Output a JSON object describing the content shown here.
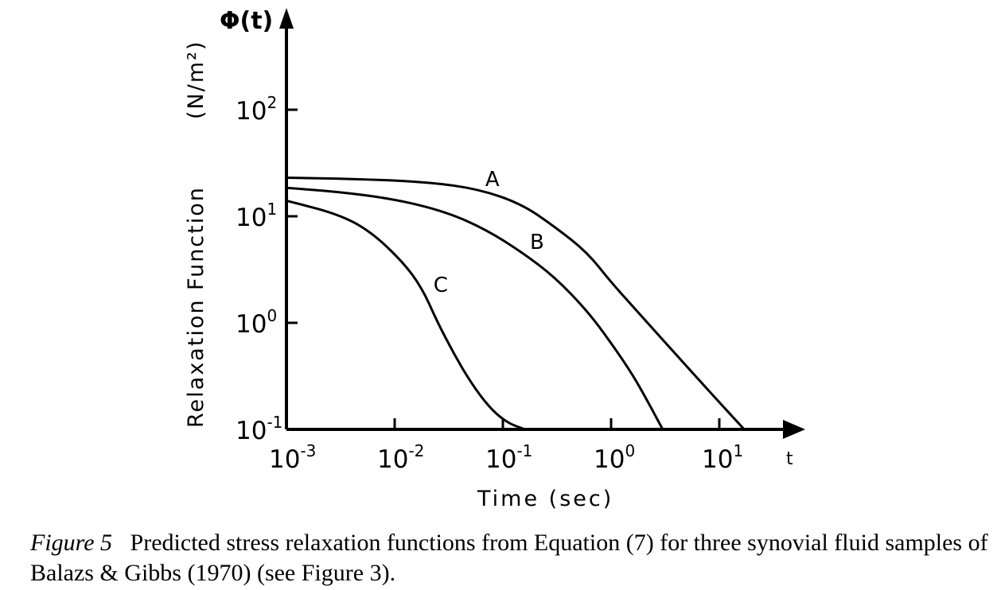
{
  "chart_data": {
    "type": "line",
    "x_scale": "log",
    "y_scale": "log",
    "xlim": [
      0.001,
      30
    ],
    "ylim": [
      0.1,
      1000
    ],
    "ylabel_symbol": "Φ(t)",
    "ylabel_unit": "(N/m²)",
    "ylabel_text": "Relaxation Function",
    "xlabel": "Time (sec)",
    "x_axis_symbol": "t",
    "x_ticks": [
      {
        "value": 0.001,
        "base": "10",
        "exp": "-3"
      },
      {
        "value": 0.01,
        "base": "10",
        "exp": "-2"
      },
      {
        "value": 0.1,
        "base": "10",
        "exp": "-1"
      },
      {
        "value": 1,
        "base": "10",
        "exp": "0"
      },
      {
        "value": 10,
        "base": "10",
        "exp": "1"
      }
    ],
    "y_ticks": [
      {
        "value": 0.1,
        "base": "10",
        "exp": "-1"
      },
      {
        "value": 1,
        "base": "10",
        "exp": "0"
      },
      {
        "value": 10,
        "base": "10",
        "exp": "1"
      },
      {
        "value": 100,
        "base": "10",
        "exp": "2"
      }
    ],
    "series": [
      {
        "name": "A",
        "x": [
          0.001,
          0.004,
          0.02,
          0.06,
          0.15,
          0.3,
          0.6,
          1,
          2,
          4,
          8,
          17
        ],
        "y": [
          23,
          22.5,
          21,
          18,
          13,
          8,
          4.6,
          2.4,
          1.1,
          0.5,
          0.23,
          0.1
        ]
      },
      {
        "name": "B",
        "x": [
          0.001,
          0.003,
          0.01,
          0.03,
          0.07,
          0.15,
          0.3,
          0.6,
          1,
          1.6,
          2.2,
          3
        ],
        "y": [
          18.5,
          17,
          14.5,
          11,
          7.5,
          4.6,
          2.7,
          1.3,
          0.65,
          0.32,
          0.18,
          0.1
        ]
      },
      {
        "name": "C",
        "x": [
          0.001,
          0.003,
          0.006,
          0.012,
          0.018,
          0.025,
          0.035,
          0.05,
          0.075,
          0.11,
          0.16
        ],
        "y": [
          14,
          10.5,
          7.2,
          3.7,
          2.1,
          1.0,
          0.52,
          0.28,
          0.16,
          0.115,
          0.1
        ]
      }
    ]
  },
  "caption": {
    "figure_label": "Figure 5",
    "text": "Predicted stress relaxation functions from Equation (7) for three synovial fluid samples of Balazs & Gibbs (1970) (see Figure 3)."
  }
}
